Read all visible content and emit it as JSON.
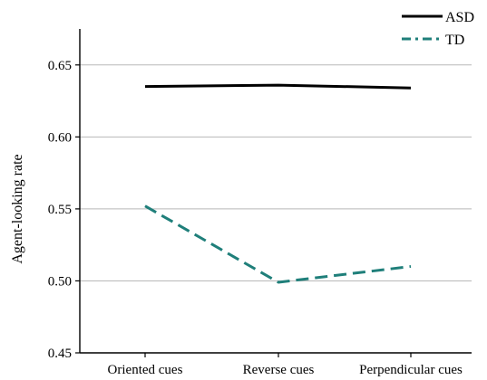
{
  "chart_data": {
    "type": "line",
    "title": "",
    "xlabel": "",
    "ylabel": "Agent-looking rate",
    "categories": [
      "Oriented cues",
      "Reverse cues",
      "Perpendicular cues"
    ],
    "ylim": [
      0.45,
      0.675
    ],
    "yticks": [
      "0.45",
      "0.50",
      "0.55",
      "0.60",
      "0.65"
    ],
    "grid": true,
    "legend_position": "top-right",
    "series": [
      {
        "name": "ASD",
        "values": [
          0.635,
          0.636,
          0.634
        ],
        "color": "#000000",
        "style": "solid"
      },
      {
        "name": "TD",
        "values": [
          0.552,
          0.499,
          0.51
        ],
        "color": "#1f7f7a",
        "style": "dash-dot"
      }
    ]
  }
}
